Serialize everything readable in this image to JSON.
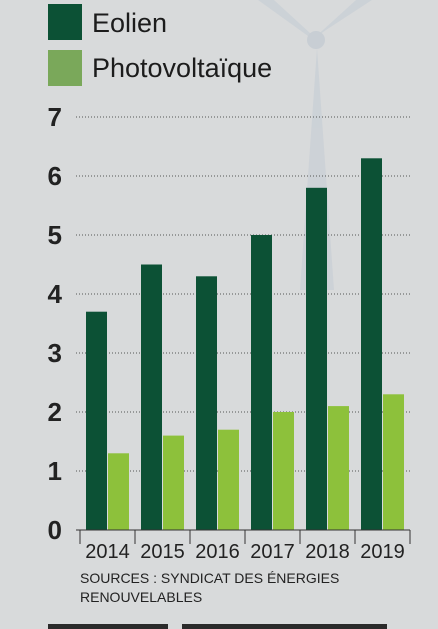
{
  "chart_data": {
    "type": "bar",
    "categories": [
      "2014",
      "2015",
      "2016",
      "2017",
      "2018",
      "2019"
    ],
    "series": [
      {
        "name": "Eolien",
        "values": [
          3.7,
          4.5,
          4.3,
          5.0,
          5.8,
          6.3
        ],
        "color": "#0c5135"
      },
      {
        "name": "Photovoltaïque",
        "values": [
          1.3,
          1.6,
          1.7,
          2.0,
          2.1,
          2.3
        ],
        "color": "#8dc13b"
      }
    ],
    "legend_swatch_colors": [
      "#0c5135",
      "#7aa85a"
    ],
    "yticks": [
      0,
      1,
      2,
      3,
      4,
      5,
      6,
      7
    ],
    "ylim": [
      0,
      7
    ],
    "grid": true,
    "legend_position": "top-left",
    "title": "",
    "xlabel": "",
    "ylabel": ""
  },
  "source_lines": [
    "SOURCES : SYNDICAT DES ÉNERGIES",
    "RENOUVELABLES"
  ]
}
